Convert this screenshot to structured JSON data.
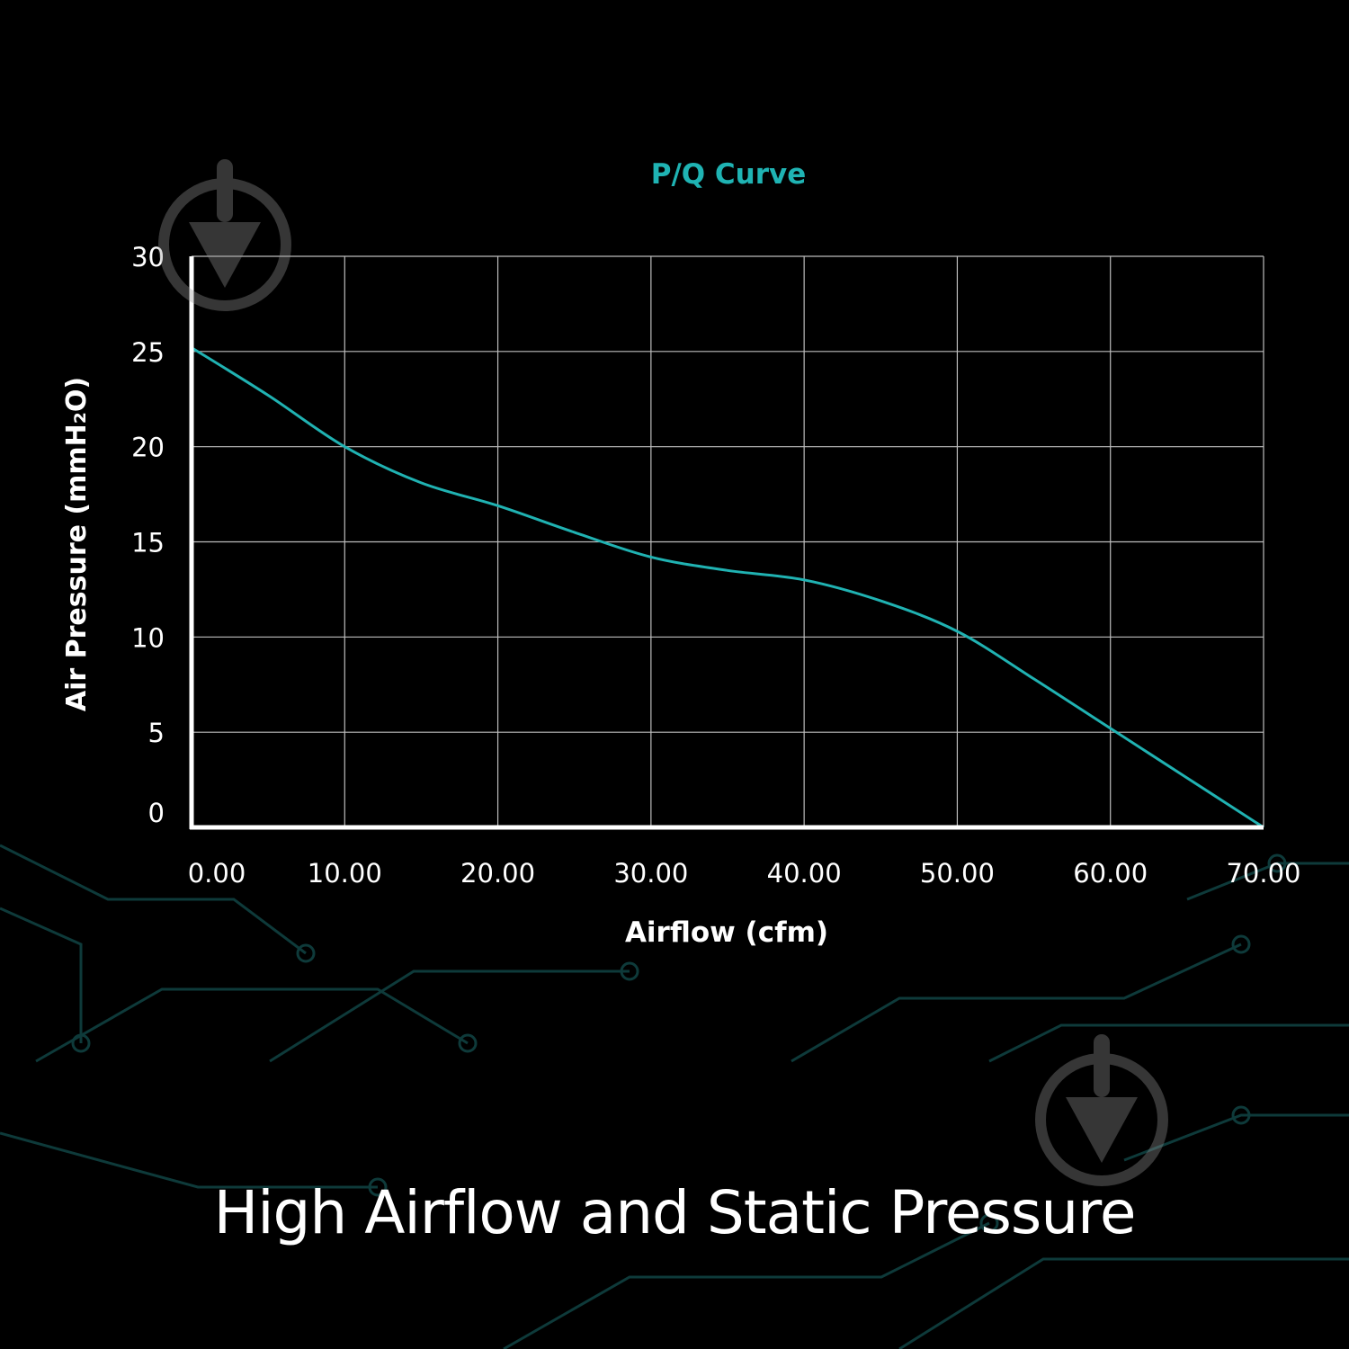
{
  "caption": "High Airflow and Static Pressure",
  "colors": {
    "background": "#000000",
    "curve": "#20b2b2",
    "title": "#1fb3b3",
    "grid": "#bdbdbd",
    "axis": "#ffffff",
    "text": "#ffffff",
    "circuit": "#0e3a3a"
  },
  "watermark_icon": "download-arrow-icon",
  "chart_data": {
    "type": "line",
    "title": "P/Q Curve",
    "xlabel": "Airflow (cfm)",
    "ylabel": "Air Pressure (mmH₂O)",
    "xlim": [
      0,
      70
    ],
    "ylim": [
      0,
      30
    ],
    "x_ticks": [
      "0.00",
      "10.00",
      "20.00",
      "30.00",
      "40.00",
      "50.00",
      "60.00",
      "70.00"
    ],
    "y_ticks": [
      "30",
      "25",
      "20",
      "15",
      "10",
      "5",
      "0"
    ],
    "grid": true,
    "series": [
      {
        "x": [
          0,
          5,
          10,
          15,
          20,
          25,
          30,
          35,
          40,
          45,
          50,
          55,
          60,
          65,
          70
        ],
        "y": [
          25.2,
          22.7,
          20.0,
          18.1,
          16.9,
          15.5,
          14.2,
          13.5,
          13.0,
          11.9,
          10.3,
          7.8,
          5.2,
          2.6,
          0
        ]
      }
    ]
  }
}
